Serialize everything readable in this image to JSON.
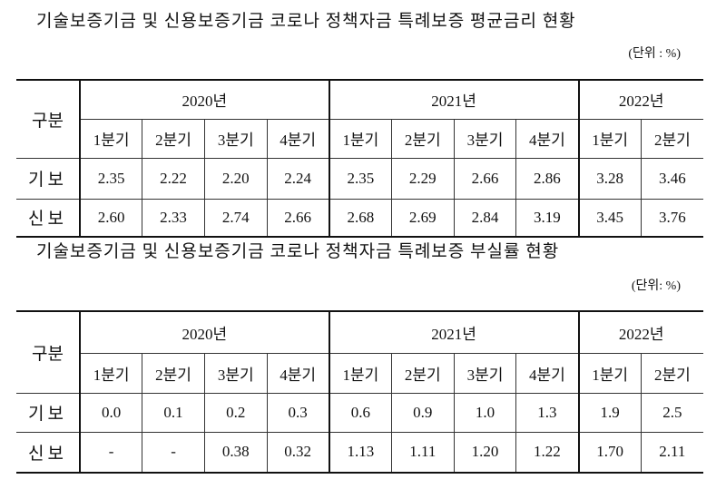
{
  "tables": [
    {
      "title": "기술보증기금 및 신용보증기금 코로나 정책자금 특례보증 평균금리 현황",
      "unit": "(단위 : %)",
      "corner": "구분",
      "years": [
        {
          "label": "2020년",
          "quarters": [
            "1분기",
            "2분기",
            "3분기",
            "4분기"
          ]
        },
        {
          "label": "2021년",
          "quarters": [
            "1분기",
            "2분기",
            "3분기",
            "4분기"
          ]
        },
        {
          "label": "2022년",
          "quarters": [
            "1분기",
            "2분기"
          ]
        }
      ],
      "rows": [
        {
          "label": "기보",
          "values": [
            "2.35",
            "2.22",
            "2.20",
            "2.24",
            "2.35",
            "2.29",
            "2.66",
            "2.86",
            "3.28",
            "3.46"
          ]
        },
        {
          "label": "신보",
          "values": [
            "2.60",
            "2.33",
            "2.74",
            "2.66",
            "2.68",
            "2.69",
            "2.84",
            "3.19",
            "3.45",
            "3.76"
          ]
        }
      ]
    },
    {
      "title": "기술보증기금 및 신용보증기금 코로나 정책자금 특례보증 부실률 현황",
      "unit": "(단위: %)",
      "corner": "구분",
      "years": [
        {
          "label": "2020년",
          "quarters": [
            "1분기",
            "2분기",
            "3분기",
            "4분기"
          ]
        },
        {
          "label": "2021년",
          "quarters": [
            "1분기",
            "2분기",
            "3분기",
            "4분기"
          ]
        },
        {
          "label": "2022년",
          "quarters": [
            "1분기",
            "2분기"
          ]
        }
      ],
      "rows": [
        {
          "label": "기보",
          "values": [
            "0.0",
            "0.1",
            "0.2",
            "0.3",
            "0.6",
            "0.9",
            "1.0",
            "1.3",
            "1.9",
            "2.5"
          ]
        },
        {
          "label": "신보",
          "values": [
            "-",
            "-",
            "0.38",
            "0.32",
            "1.13",
            "1.11",
            "1.20",
            "1.22",
            "1.70",
            "2.11"
          ]
        }
      ]
    }
  ]
}
